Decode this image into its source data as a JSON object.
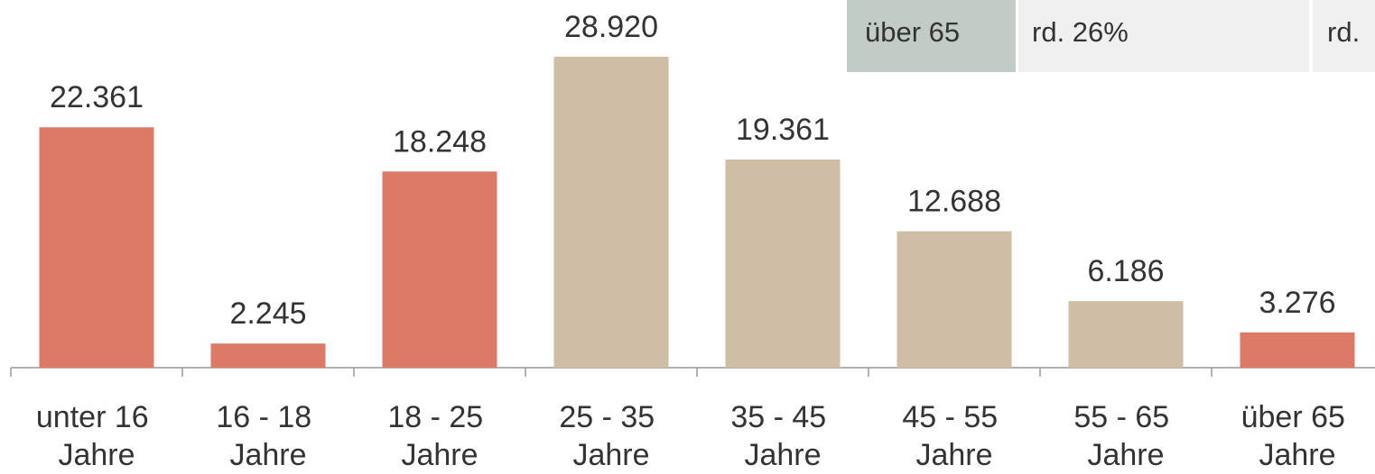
{
  "chart_data": {
    "type": "bar",
    "categories": [
      "unter 16 Jahre",
      "16 - 18 Jahre",
      "18 - 25 Jahre",
      "25 - 35 Jahre",
      "35 - 45 Jahre",
      "45 - 55 Jahre",
      "55 - 65 Jahre",
      "über 65 Jahre"
    ],
    "values": [
      22361,
      2245,
      18248,
      28920,
      19361,
      12688,
      6186,
      3276
    ],
    "value_labels": [
      "22.361",
      "2.245",
      "18.248",
      "28.920",
      "19.361",
      "12.688",
      "6.186",
      "3.276"
    ],
    "colors": [
      "#dd7967",
      "#dd7967",
      "#dd7967",
      "#cfbda5",
      "#cfbda5",
      "#cfbda5",
      "#cfbda5",
      "#dd7967"
    ]
  },
  "table": {
    "rows": [
      [
        "über 65",
        "rd. 26%",
        "rd."
      ]
    ]
  }
}
